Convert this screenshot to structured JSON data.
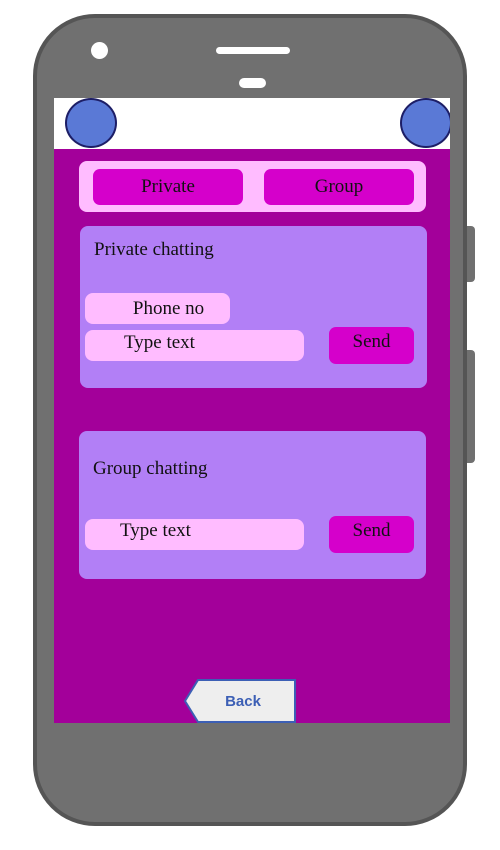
{
  "colors": {
    "phone_body": "#707070",
    "screen_background": "#a3009a",
    "tab_bar": "#ffbcff",
    "tab_button": "#d500cb",
    "panel": "#b27ff6",
    "input_field": "#ffbcff",
    "avatar": "#5a79d6",
    "back_button": "#eeeeee",
    "back_text": "#3c5fb5"
  },
  "tabs": {
    "private_label": "Private",
    "group_label": "Group"
  },
  "private_panel": {
    "title": "Private chatting",
    "phone_placeholder": "Phone no",
    "text_placeholder": "Type text",
    "send_label": "Send"
  },
  "group_panel": {
    "title": "Group chatting",
    "text_placeholder": "Type text",
    "send_label": "Send"
  },
  "navigation": {
    "back_label": "Back"
  }
}
